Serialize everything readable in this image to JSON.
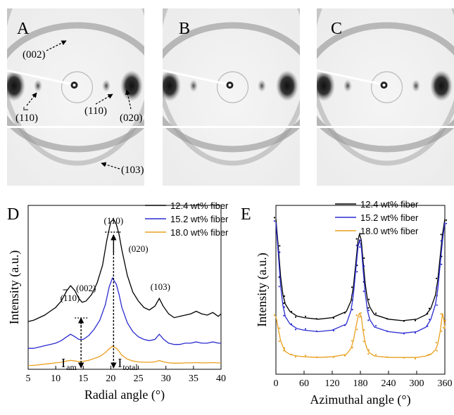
{
  "panels": {
    "A": {
      "label": "A",
      "annotations": [
        "(002)",
        "(̄1̄10)",
        "(110)",
        "(020)",
        "(103)"
      ]
    },
    "B": {
      "label": "B"
    },
    "C": {
      "label": "C"
    },
    "D": {
      "label": "D"
    },
    "E": {
      "label": "E"
    }
  },
  "hkl_a": {
    "p002": "(002)",
    "p110bar": "(110)",
    "p110": "(110)",
    "p020": "(020)",
    "p103": "(103)"
  },
  "colors": {
    "s1": "#000000",
    "s2": "#2b2bd0",
    "s3": "#e8a020"
  },
  "chart_data": [
    {
      "type": "line",
      "panel": "D",
      "xlabel": "Radial angle (°)",
      "ylabel": "Intensity (a.u.)",
      "xlim": [
        5,
        40
      ],
      "xticks": [
        "5",
        "10",
        "15",
        "20",
        "25",
        "30",
        "35",
        "40"
      ],
      "legend": [
        "12.4 wt% fiber",
        "15.2 wt% fiber",
        "18.0 wt% fiber"
      ],
      "annotations": {
        "p110bar": "(110)",
        "p002": "(002)",
        "p110": "(110)",
        "p020": "(020)",
        "p103": "(103)",
        "iam_main": "I",
        "iam_sub": "am",
        "itot_main": "I",
        "itot_sub": "total"
      },
      "series": [
        {
          "name": "12.4 wt% fiber",
          "x": [
            5,
            6,
            7,
            8,
            9,
            10,
            11,
            12,
            12.7,
            13.5,
            14.2,
            14.8,
            15.5,
            16.5,
            17.5,
            18.5,
            19.3,
            20,
            20.5,
            21,
            21.5,
            22,
            23,
            24,
            25,
            26,
            27,
            28,
            28.8,
            29.5,
            30.5,
            31.5,
            32.5,
            33.5,
            34.5,
            35.5,
            36.5,
            37.5,
            38.5,
            39.5,
            40
          ],
          "y": [
            0.22,
            0.23,
            0.25,
            0.27,
            0.3,
            0.33,
            0.38,
            0.46,
            0.5,
            0.46,
            0.4,
            0.37,
            0.38,
            0.43,
            0.52,
            0.66,
            0.86,
            1.0,
            1.02,
            0.98,
            0.9,
            0.78,
            0.58,
            0.45,
            0.38,
            0.33,
            0.31,
            0.34,
            0.4,
            0.34,
            0.28,
            0.25,
            0.26,
            0.27,
            0.28,
            0.3,
            0.28,
            0.27,
            0.29,
            0.26,
            0.28
          ]
        },
        {
          "name": "15.2 wt% fiber",
          "x": [
            5,
            6,
            7,
            8,
            9,
            10,
            11,
            12,
            12.7,
            13.5,
            14.2,
            15,
            16,
            17,
            18,
            19,
            19.7,
            20.3,
            21,
            21.5,
            22,
            23,
            24,
            25,
            26,
            27,
            28,
            28.8,
            29.6,
            30.5,
            31.5,
            32.5,
            33.5,
            34.5,
            35.5,
            36.5,
            37.5,
            38.5,
            39.5,
            40
          ],
          "y": [
            0.1,
            0.1,
            0.11,
            0.12,
            0.13,
            0.14,
            0.16,
            0.19,
            0.21,
            0.19,
            0.17,
            0.17,
            0.2,
            0.25,
            0.32,
            0.44,
            0.58,
            0.65,
            0.6,
            0.52,
            0.42,
            0.3,
            0.23,
            0.19,
            0.17,
            0.16,
            0.17,
            0.21,
            0.17,
            0.14,
            0.13,
            0.13,
            0.14,
            0.14,
            0.15,
            0.14,
            0.14,
            0.15,
            0.14,
            0.14
          ]
        },
        {
          "name": "18.0 wt% fiber",
          "x": [
            5,
            6,
            7,
            8,
            9,
            10,
            11,
            12,
            12.7,
            13.5,
            14.2,
            15,
            16,
            17,
            18,
            19,
            19.7,
            20.3,
            21,
            21.5,
            22,
            23,
            24,
            25,
            26,
            27,
            28,
            28.8,
            29.6,
            30.5,
            31.5,
            32.5,
            33.5,
            34.5,
            35.5,
            36.5,
            37.5,
            38.5,
            39.5,
            40
          ],
          "y": [
            0.03,
            0.03,
            0.035,
            0.04,
            0.045,
            0.05,
            0.055,
            0.065,
            0.07,
            0.065,
            0.06,
            0.062,
            0.07,
            0.085,
            0.1,
            0.13,
            0.16,
            0.18,
            0.165,
            0.14,
            0.11,
            0.08,
            0.065,
            0.058,
            0.055,
            0.055,
            0.058,
            0.068,
            0.058,
            0.05,
            0.048,
            0.048,
            0.05,
            0.05,
            0.052,
            0.05,
            0.05,
            0.052,
            0.05,
            0.05
          ]
        }
      ]
    },
    {
      "type": "line",
      "panel": "E",
      "xlabel": "Azimuthal angle (°)",
      "ylabel": "Intensity (a.u.)",
      "xlim": [
        0,
        360
      ],
      "xticks": [
        "0",
        "60",
        "120",
        "180",
        "240",
        "300",
        "360"
      ],
      "legend": [
        "12.4 wt% fiber",
        "15.2 wt% fiber",
        "18.0 wt% fiber"
      ],
      "series": [
        {
          "name": "12.4 wt% fiber",
          "x": [
            0,
            5,
            10,
            15,
            20,
            30,
            45,
            60,
            90,
            120,
            150,
            160,
            165,
            170,
            175,
            178,
            182,
            185,
            190,
            195,
            200,
            210,
            240,
            270,
            300,
            320,
            330,
            340,
            345,
            350,
            355,
            360
          ],
          "y": [
            1.0,
            0.82,
            0.62,
            0.5,
            0.44,
            0.39,
            0.36,
            0.35,
            0.34,
            0.35,
            0.39,
            0.46,
            0.55,
            0.7,
            0.86,
            0.9,
            0.86,
            0.75,
            0.58,
            0.47,
            0.42,
            0.37,
            0.34,
            0.33,
            0.34,
            0.37,
            0.41,
            0.5,
            0.6,
            0.75,
            0.9,
            1.0
          ]
        },
        {
          "name": "15.2 wt% fiber",
          "x": [
            0,
            5,
            10,
            15,
            20,
            30,
            45,
            60,
            90,
            120,
            150,
            160,
            165,
            170,
            175,
            178,
            182,
            185,
            190,
            195,
            200,
            210,
            240,
            270,
            300,
            320,
            330,
            340,
            345,
            350,
            355,
            360
          ],
          "y": [
            1.0,
            0.8,
            0.58,
            0.45,
            0.38,
            0.33,
            0.3,
            0.29,
            0.28,
            0.29,
            0.33,
            0.42,
            0.52,
            0.68,
            0.84,
            0.88,
            0.84,
            0.72,
            0.54,
            0.42,
            0.36,
            0.31,
            0.28,
            0.27,
            0.28,
            0.31,
            0.36,
            0.46,
            0.56,
            0.72,
            0.88,
            1.0
          ]
        },
        {
          "name": "18.0 wt% fiber",
          "x": [
            0,
            5,
            10,
            15,
            20,
            30,
            45,
            60,
            90,
            120,
            150,
            160,
            165,
            170,
            175,
            178,
            182,
            185,
            190,
            195,
            200,
            210,
            240,
            270,
            300,
            320,
            330,
            340,
            345,
            350,
            355,
            358,
            360
          ],
          "y": [
            0.38,
            0.3,
            0.22,
            0.18,
            0.15,
            0.13,
            0.12,
            0.115,
            0.11,
            0.115,
            0.13,
            0.17,
            0.22,
            0.3,
            0.38,
            0.4,
            0.38,
            0.3,
            0.21,
            0.16,
            0.14,
            0.12,
            0.11,
            0.11,
            0.11,
            0.12,
            0.13,
            0.16,
            0.2,
            0.28,
            0.4,
            0.36,
            0.3
          ]
        }
      ]
    }
  ]
}
